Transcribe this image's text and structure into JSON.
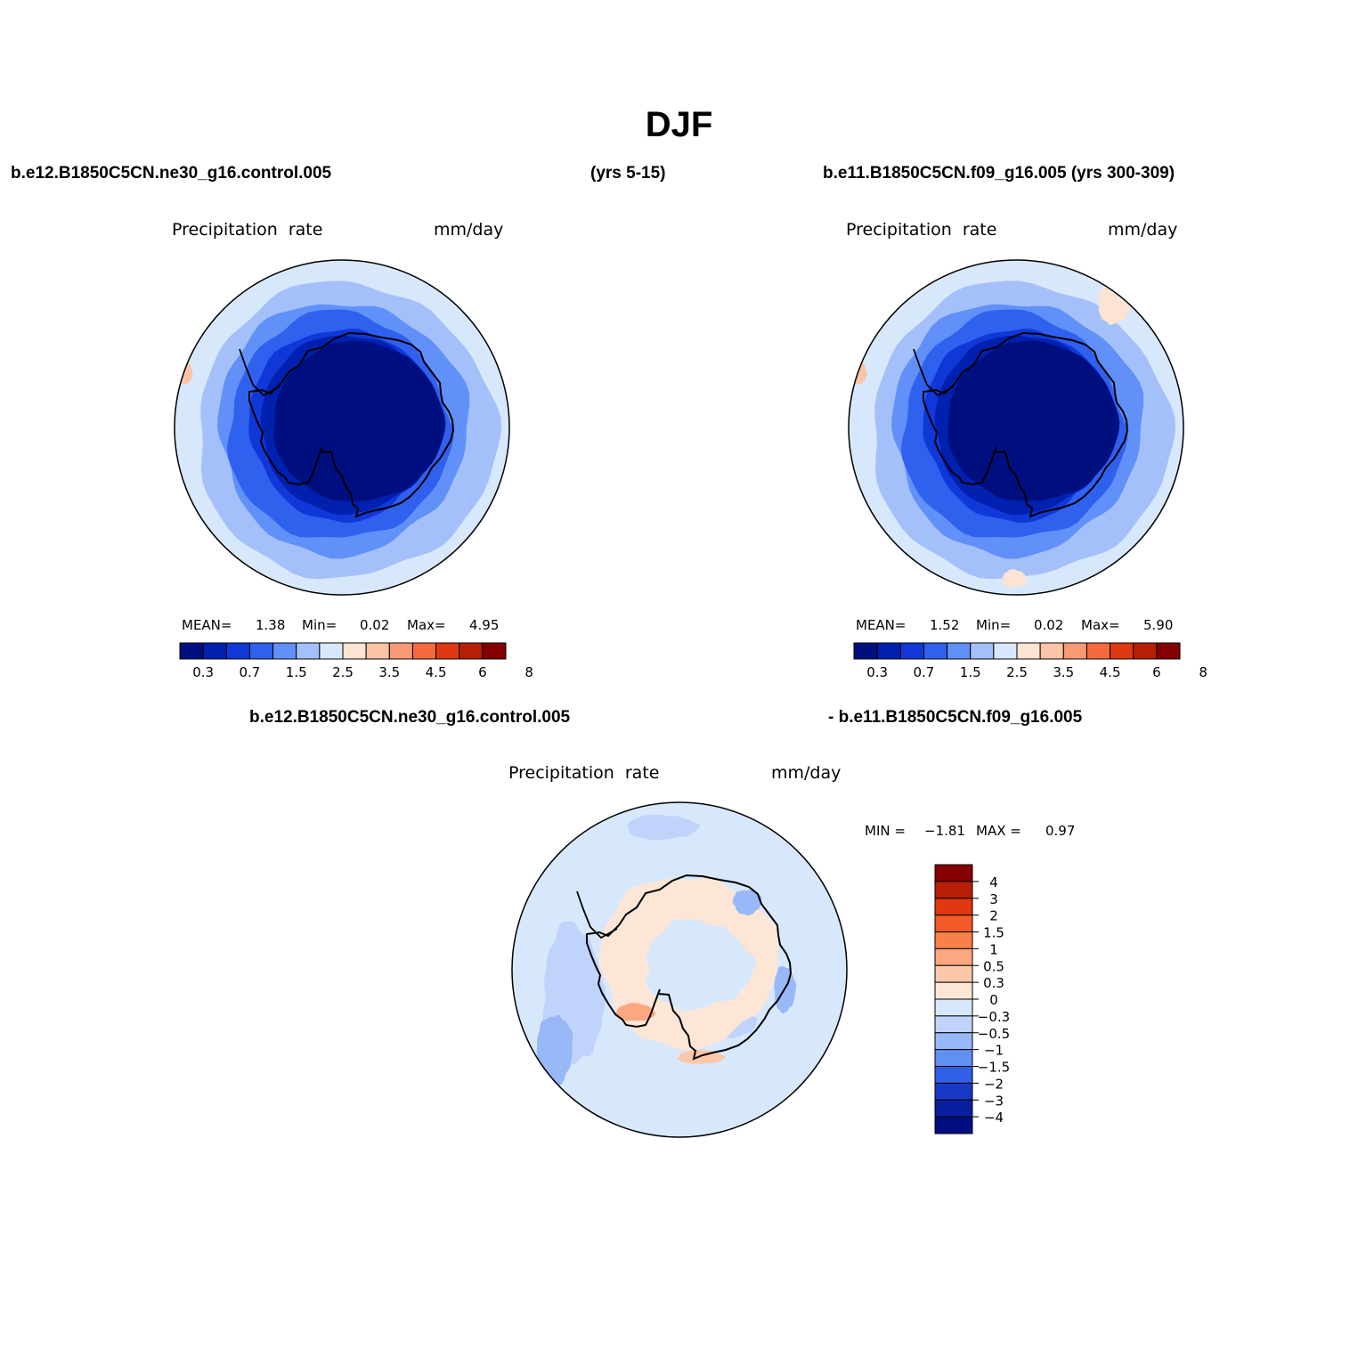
{
  "title": "DJF",
  "header": {
    "case1": "b.e12.B1850C5CN.ne30_g16.control.005",
    "case1_years": "(yrs 5-15)",
    "case2": "b.e11.B1850C5CN.f09_g16.005 (yrs 300-309)"
  },
  "diff_header": {
    "left": "b.e12.B1850C5CN.ne30_g16.control.005",
    "right": "- b.e11.B1850C5CN.f09_g16.005"
  },
  "panels": [
    {
      "variable": "Precipitation  rate",
      "units": "mm/day",
      "mean_label": "MEAN=",
      "mean": "1.38",
      "min_label": "Min=",
      "min": "0.02",
      "max_label": "Max=",
      "max": "4.95"
    },
    {
      "variable": "Precipitation  rate",
      "units": "mm/day",
      "mean_label": "MEAN=",
      "mean": "1.52",
      "min_label": "Min=",
      "min": "0.02",
      "max_label": "Max=",
      "max": "5.90"
    },
    {
      "variable": "Precipitation  rate",
      "units": "mm/day",
      "min_label": "MIN =",
      "min": "−1.81",
      "max_label": "MAX =",
      "max": "0.97"
    }
  ],
  "chart_data": [
    {
      "type": "heatmap",
      "projection": "south-polar-stereographic",
      "title": "Precipitation  rate",
      "units": "mm/day",
      "statistics": {
        "mean": 1.38,
        "min": 0.02,
        "max": 4.95
      },
      "levels": [
        "0.3",
        "0.7",
        "1.5",
        "2.5",
        "3.5",
        "4.5",
        "6",
        "8"
      ],
      "colors": [
        "#000f80",
        "#0020b0",
        "#1038d8",
        "#3060ee",
        "#6090f8",
        "#a4c0fb",
        "#d8e8fc",
        "#fde3d2",
        "#fbc3a8",
        "#f89a74",
        "#f46a3c",
        "#e03810",
        "#b81e05",
        "#850000"
      ]
    },
    {
      "type": "heatmap",
      "projection": "south-polar-stereographic",
      "title": "Precipitation  rate",
      "units": "mm/day",
      "statistics": {
        "mean": 1.52,
        "min": 0.02,
        "max": 5.9
      },
      "levels": [
        "0.3",
        "0.7",
        "1.5",
        "2.5",
        "3.5",
        "4.5",
        "6",
        "8"
      ],
      "colors": [
        "#000f80",
        "#0020b0",
        "#1038d8",
        "#3060ee",
        "#6090f8",
        "#a4c0fb",
        "#d8e8fc",
        "#fde3d2",
        "#fbc3a8",
        "#f89a74",
        "#f46a3c",
        "#e03810",
        "#b81e05",
        "#850000"
      ]
    },
    {
      "type": "heatmap",
      "projection": "south-polar-stereographic",
      "title": "Precipitation  rate",
      "units": "mm/day",
      "statistics": {
        "min": -1.81,
        "max": 0.97
      },
      "levels": [
        "4",
        "3",
        "2",
        "1.5",
        "1",
        "0.5",
        "0.3",
        "0",
        "−0.3",
        "−0.5",
        "−1",
        "−1.5",
        "−2",
        "−3",
        "−4"
      ],
      "colors": [
        "#850000",
        "#b81e05",
        "#e03810",
        "#f45a28",
        "#f98048",
        "#fba880",
        "#fcc8aa",
        "#fde6d6",
        "#d8e8fc",
        "#c0d4fb",
        "#98b8f8",
        "#6090f0",
        "#3060e8",
        "#1838c8",
        "#0820a0",
        "#000f80"
      ]
    }
  ]
}
